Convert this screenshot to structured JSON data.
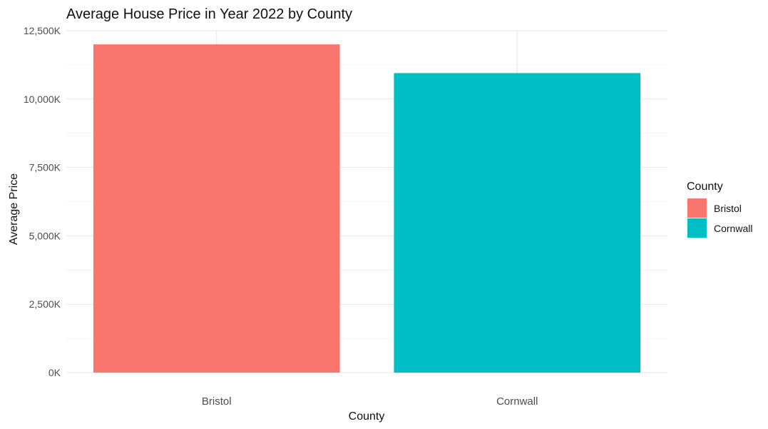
{
  "chart_data": {
    "type": "bar",
    "title": "Average House Price in Year 2022 by County",
    "xlabel": "County",
    "ylabel": "Average Price",
    "categories": [
      "Bristol",
      "Cornwall"
    ],
    "values": [
      12000,
      10950
    ],
    "value_unit_suffix": "K",
    "ylim": [
      0,
      12500
    ],
    "yticks": [
      "0K",
      "2,500K",
      "5,000K",
      "7,500K",
      "10,000K",
      "12,500K"
    ],
    "ytick_values": [
      0,
      2500,
      5000,
      7500,
      10000,
      12500
    ],
    "grid": true,
    "legend": {
      "title": "County",
      "placement": "right",
      "entries": [
        "Bristol",
        "Cornwall"
      ]
    },
    "colors": {
      "Bristol": "#F8766D",
      "Cornwall": "#00BFC4"
    }
  }
}
